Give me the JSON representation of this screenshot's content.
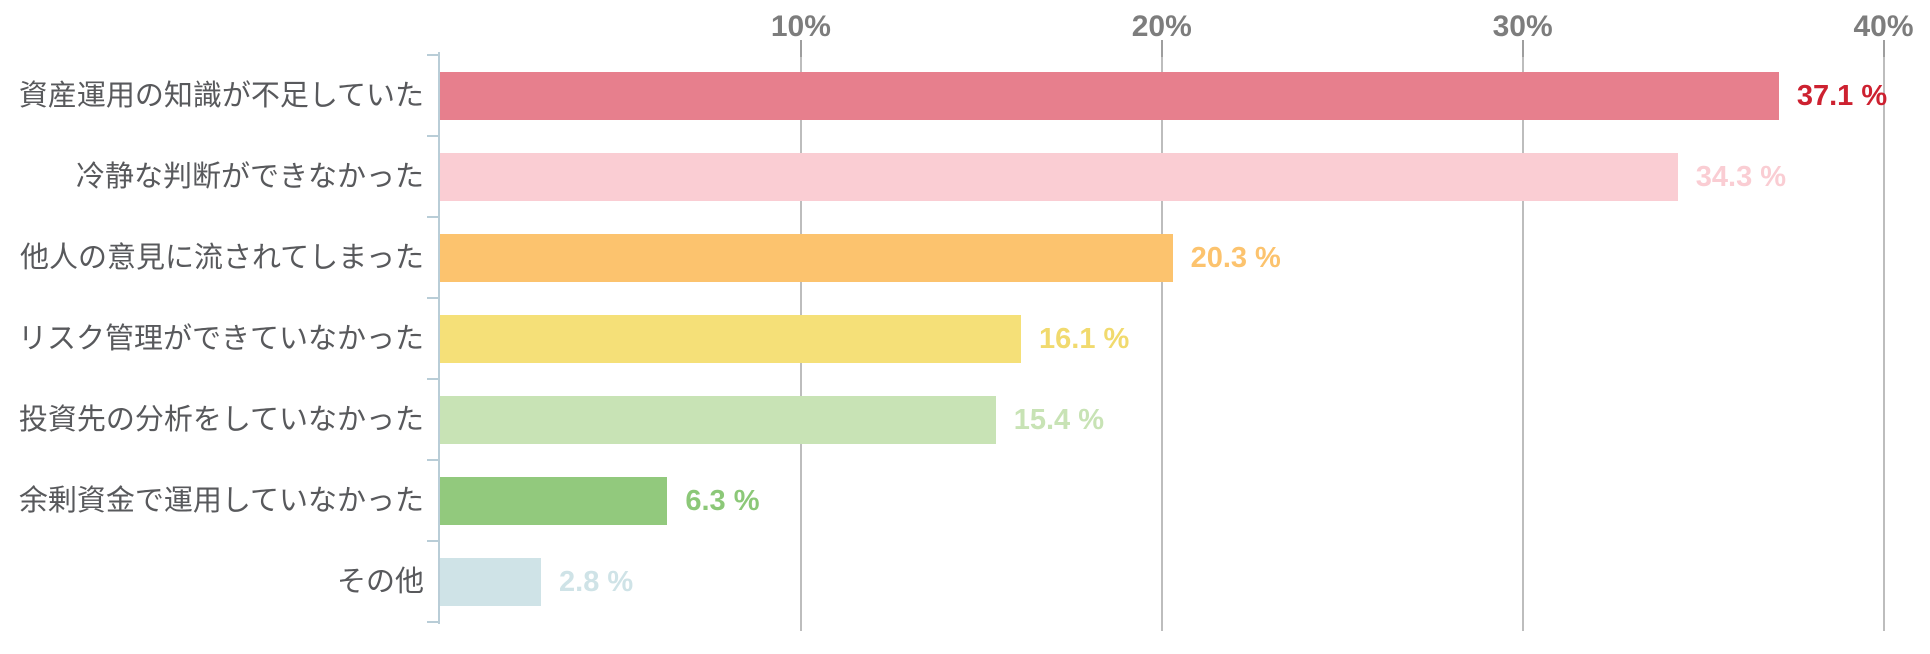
{
  "chart_data": {
    "type": "bar",
    "orientation": "horizontal",
    "title": "",
    "xlabel": "",
    "ylabel": "",
    "categories": [
      "資産運用の知識が不足していた",
      "冷静な判断ができなかった",
      "他人の意見に流されてしまった",
      "リスク管理ができていなかった",
      "投資先の分析をしていなかった",
      "余剰資金で運用していなかった",
      "その他"
    ],
    "values": [
      37.1,
      34.3,
      20.3,
      16.1,
      15.4,
      6.3,
      2.8
    ],
    "value_labels": [
      "37.1 %",
      "34.3 %",
      "20.3 %",
      "16.1 %",
      "15.4 %",
      "6.3 %",
      "2.8 %"
    ],
    "bar_colors": [
      "#e77f8d",
      "#facdd3",
      "#fcc36e",
      "#f5e078",
      "#c8e3b5",
      "#92c97d",
      "#cfe3e7"
    ],
    "value_label_colors": [
      "#cd2130",
      "#facdd3",
      "#fcc36e",
      "#f1da6e",
      "#c8e3b5",
      "#8cc878",
      "#cfe3e7"
    ],
    "x_ticks": [
      {
        "value": 10,
        "label": "10%"
      },
      {
        "value": 20,
        "label": "20%"
      },
      {
        "value": 30,
        "label": "30%"
      },
      {
        "value": 40,
        "label": "40%"
      }
    ],
    "xlim": [
      0,
      40
    ],
    "grid": true,
    "legend": false,
    "colors": {
      "axis": "#b9cdd7",
      "gridline": "#bdbdbd",
      "x_tick_label": "#7d7d7d",
      "x_tick_mark": "#9e9e9e",
      "category_label": "#58595c",
      "background": "#ffffff"
    }
  }
}
